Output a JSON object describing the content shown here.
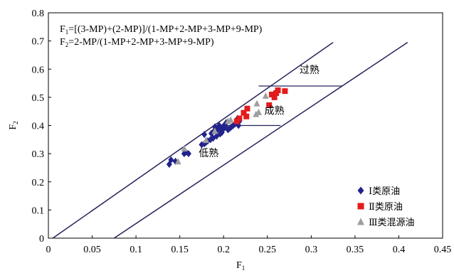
{
  "chart_data": {
    "type": "scatter",
    "xlabel": "F1",
    "ylabel": "F2",
    "xlim": [
      0,
      0.45
    ],
    "ylim": [
      0,
      0.8
    ],
    "x_ticks": [
      0,
      0.05,
      0.1,
      0.15,
      0.2,
      0.25,
      0.3,
      0.35,
      0.4,
      0.45
    ],
    "y_ticks": [
      0,
      0.1,
      0.2,
      0.3,
      0.4,
      0.5,
      0.6,
      0.7,
      0.8
    ],
    "grid": false,
    "legend_position": "bottom-right",
    "formulas": [
      {
        "lhs": "F",
        "sub": "1",
        "rhs": "=[(3-MP)+(2-MP)]/(1-MP+2-MP+3-MP+9-MP)"
      },
      {
        "lhs": "F",
        "sub": "2",
        "rhs": "=2-MP/(1-MP+2-MP+3-MP+9-MP)"
      }
    ],
    "boundary_lines": [
      {
        "x": [
          0.005,
          0.325
        ],
        "y": [
          0.0,
          0.695
        ]
      },
      {
        "x": [
          0.075,
          0.41
        ],
        "y": [
          0.0,
          0.695
        ]
      }
    ],
    "zone_dividers": [
      {
        "x": [
          0.2,
          0.265
        ],
        "y": [
          0.4,
          0.4
        ]
      },
      {
        "x": [
          0.24,
          0.335
        ],
        "y": [
          0.54,
          0.54
        ]
      }
    ],
    "zones": [
      {
        "label": "低熟",
        "x": 0.183,
        "y": 0.29
      },
      {
        "label": "成熟",
        "x": 0.258,
        "y": 0.44
      },
      {
        "label": "过熟",
        "x": 0.298,
        "y": 0.585
      }
    ],
    "series": [
      {
        "name": "Ⅰ类原油",
        "marker": "diamond",
        "color": "#23238c",
        "points": [
          [
            0.138,
            0.262
          ],
          [
            0.14,
            0.278
          ],
          [
            0.145,
            0.273
          ],
          [
            0.155,
            0.3
          ],
          [
            0.157,
            0.305
          ],
          [
            0.16,
            0.3
          ],
          [
            0.175,
            0.332
          ],
          [
            0.178,
            0.335
          ],
          [
            0.18,
            0.34
          ],
          [
            0.178,
            0.368
          ],
          [
            0.182,
            0.345
          ],
          [
            0.185,
            0.35
          ],
          [
            0.186,
            0.372
          ],
          [
            0.188,
            0.355
          ],
          [
            0.189,
            0.38
          ],
          [
            0.19,
            0.395
          ],
          [
            0.192,
            0.362
          ],
          [
            0.193,
            0.385
          ],
          [
            0.194,
            0.39
          ],
          [
            0.195,
            0.4
          ],
          [
            0.196,
            0.37
          ],
          [
            0.197,
            0.38
          ],
          [
            0.198,
            0.375
          ],
          [
            0.199,
            0.395
          ],
          [
            0.2,
            0.388
          ],
          [
            0.201,
            0.402
          ],
          [
            0.202,
            0.398
          ],
          [
            0.203,
            0.41
          ],
          [
            0.205,
            0.385
          ],
          [
            0.207,
            0.39
          ],
          [
            0.209,
            0.395
          ],
          [
            0.211,
            0.4
          ],
          [
            0.213,
            0.405
          ],
          [
            0.215,
            0.41
          ],
          [
            0.217,
            0.4
          ],
          [
            0.218,
            0.415
          ],
          [
            0.216,
            0.425
          ]
        ]
      },
      {
        "name": "Ⅱ类原油",
        "marker": "square",
        "color": "#e31b1b",
        "points": [
          [
            0.215,
            0.415
          ],
          [
            0.218,
            0.425
          ],
          [
            0.223,
            0.445
          ],
          [
            0.226,
            0.432
          ],
          [
            0.227,
            0.46
          ],
          [
            0.252,
            0.472
          ],
          [
            0.255,
            0.51
          ],
          [
            0.258,
            0.5
          ],
          [
            0.262,
            0.525
          ],
          [
            0.26,
            0.515
          ],
          [
            0.27,
            0.522
          ]
        ]
      },
      {
        "name": "Ⅲ类混源油",
        "marker": "triangle",
        "color": "#9e9e9e",
        "points": [
          [
            0.148,
            0.272
          ],
          [
            0.155,
            0.318
          ],
          [
            0.18,
            0.348
          ],
          [
            0.19,
            0.38
          ],
          [
            0.205,
            0.415
          ],
          [
            0.208,
            0.42
          ],
          [
            0.237,
            0.44
          ],
          [
            0.24,
            0.447
          ],
          [
            0.238,
            0.478
          ],
          [
            0.248,
            0.505
          ]
        ]
      }
    ]
  }
}
